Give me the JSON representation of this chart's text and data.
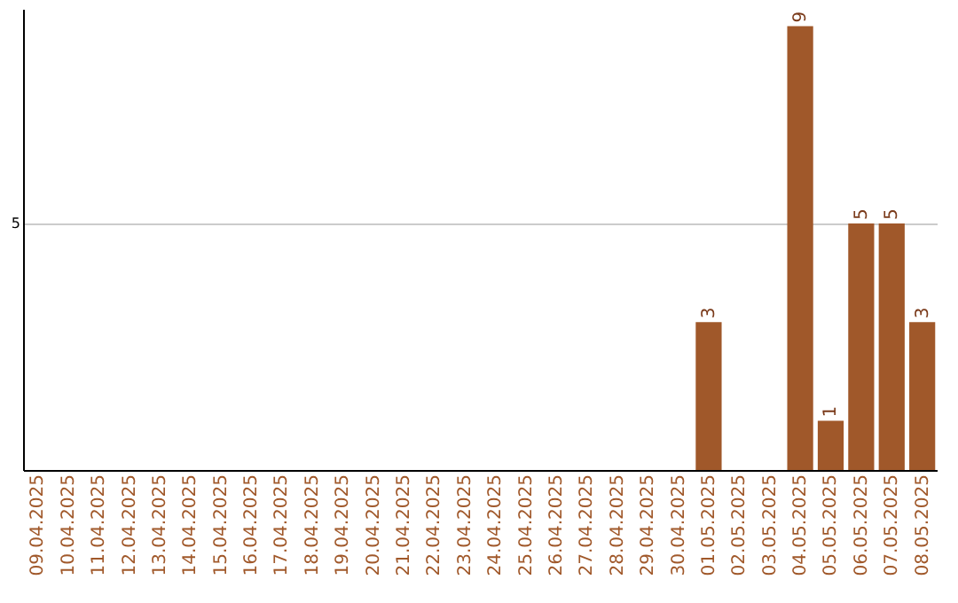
{
  "chart_data": {
    "type": "bar",
    "categories": [
      "09.04.2025",
      "10.04.2025",
      "11.04.2025",
      "12.04.2025",
      "13.04.2025",
      "14.04.2025",
      "15.04.2025",
      "16.04.2025",
      "17.04.2025",
      "18.04.2025",
      "19.04.2025",
      "20.04.2025",
      "21.04.2025",
      "22.04.2025",
      "23.04.2025",
      "24.04.2025",
      "25.04.2025",
      "26.04.2025",
      "27.04.2025",
      "28.04.2025",
      "29.04.2025",
      "30.04.2025",
      "01.05.2025",
      "02.05.2025",
      "03.05.2025",
      "04.05.2025",
      "05.05.2025",
      "06.05.2025",
      "07.05.2025",
      "08.05.2025"
    ],
    "values": [
      null,
      null,
      null,
      null,
      null,
      null,
      null,
      null,
      null,
      null,
      null,
      null,
      null,
      null,
      null,
      null,
      null,
      null,
      null,
      null,
      null,
      null,
      3,
      null,
      null,
      9,
      1,
      5,
      5,
      3
    ],
    "data_labels": true,
    "color": "#a0582a",
    "ylim": [
      0,
      9.35
    ],
    "yticks": [
      5
    ],
    "grid": "y"
  }
}
